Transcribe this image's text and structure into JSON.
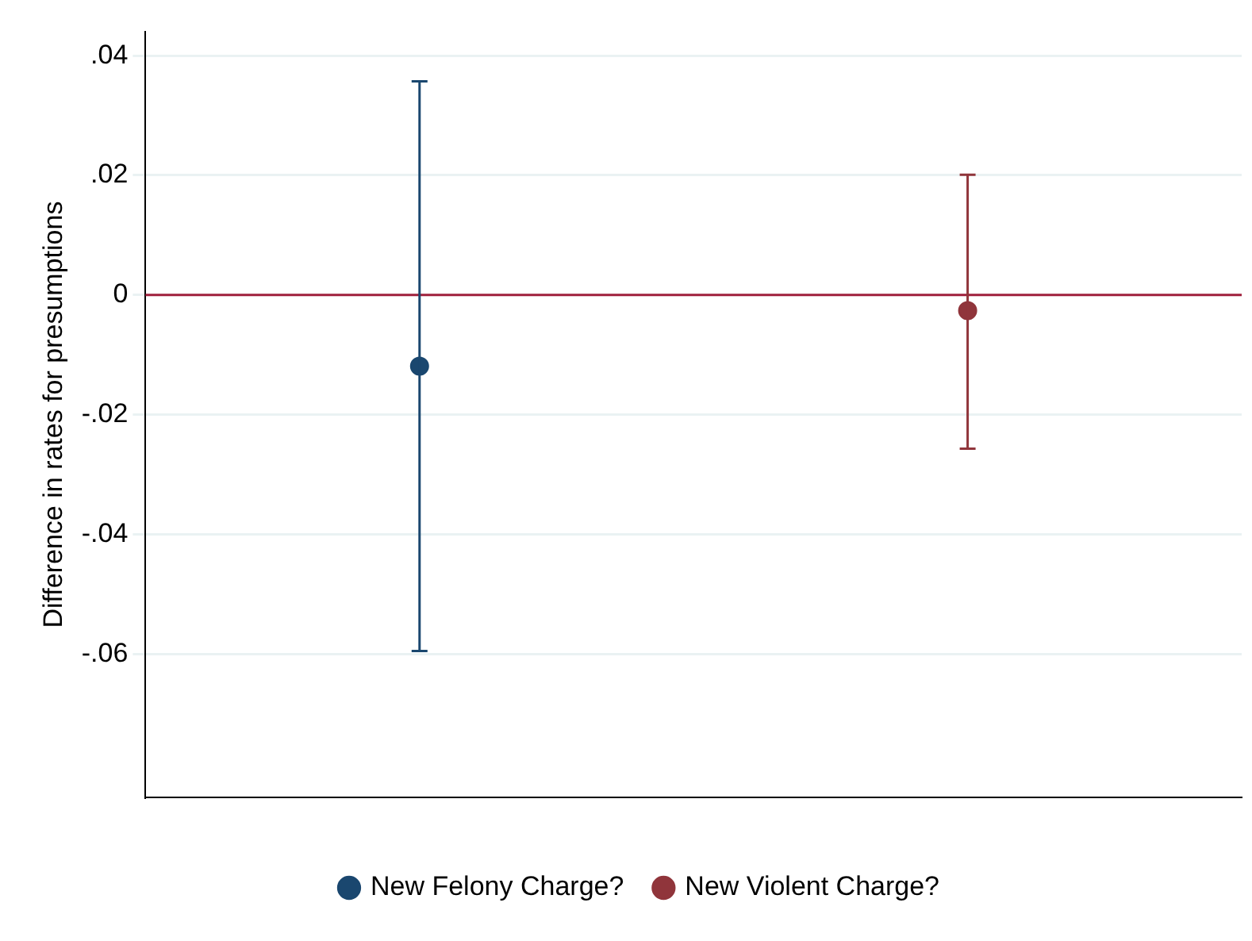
{
  "chart_data": {
    "type": "scatter",
    "ylabel": "Difference in rates for presumptions",
    "categories": [
      null,
      null
    ],
    "series": [
      {
        "name": "New Felony Charge?",
        "color": "#1a476f",
        "values": [
          -0.0119,
          null
        ],
        "errors": [
          [
            -0.0595,
            0.0357
          ],
          null
        ]
      },
      {
        "name": "New Violent Charge?",
        "color": "#90353b",
        "values": [
          null,
          -0.0026
        ],
        "errors": [
          null,
          [
            -0.0257,
            0.0201
          ]
        ]
      }
    ],
    "ylim": [
      -0.084,
      0.044
    ],
    "yticks": [
      {
        "value": -0.06,
        "label": "-.06"
      },
      {
        "value": -0.04,
        "label": "-.04"
      },
      {
        "value": -0.02,
        "label": "-.02"
      },
      {
        "value": 0,
        "label": "0"
      },
      {
        "value": 0.02,
        "label": ".02"
      },
      {
        "value": 0.04,
        "label": ".04"
      }
    ],
    "ref_lines": [
      {
        "axis": "y",
        "value": 0,
        "color": "#a0203c"
      }
    ],
    "grid": "y",
    "legend": "bottom",
    "marker": "circle"
  }
}
